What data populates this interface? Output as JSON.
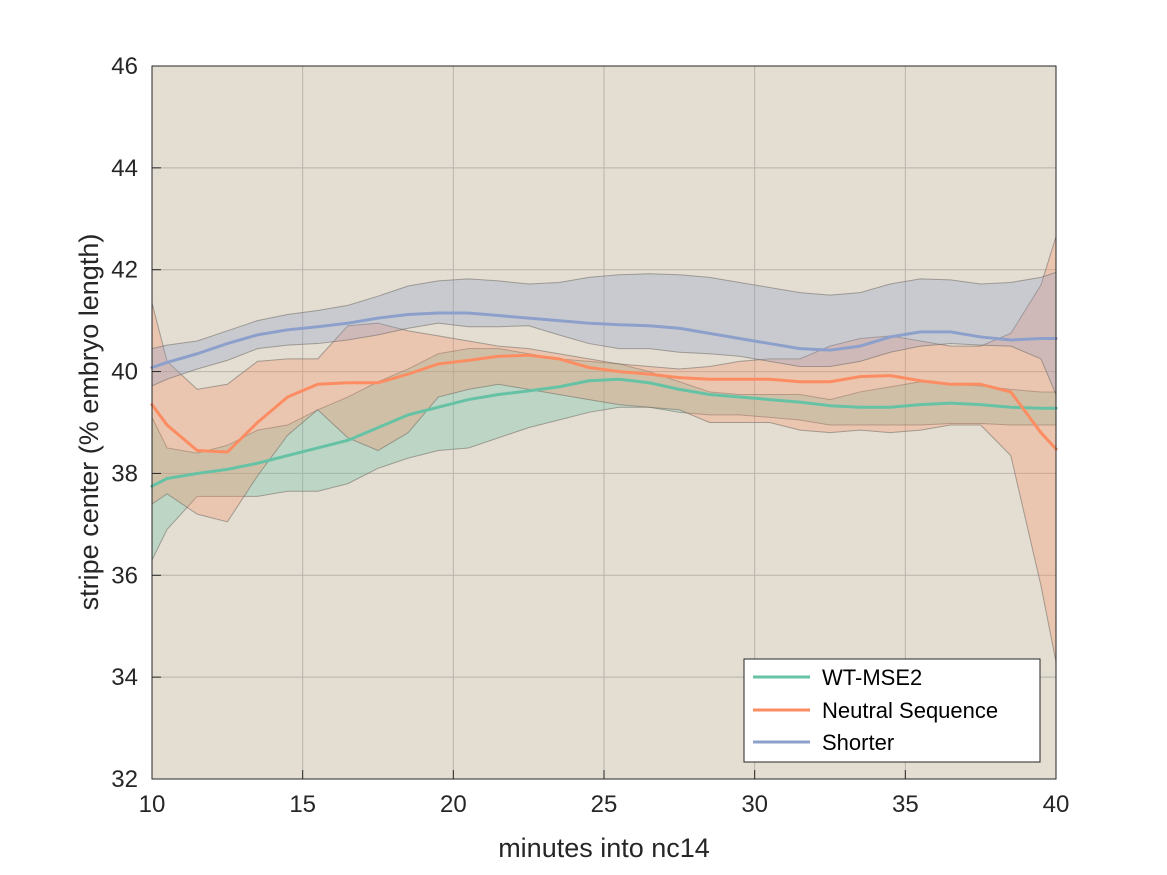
{
  "chart_data": {
    "type": "line",
    "title": "",
    "xlabel": "minutes into nc14",
    "ylabel": "stripe center (% embryo length)",
    "xlim": [
      10,
      40
    ],
    "ylim": [
      32,
      46
    ],
    "xticks": [
      10,
      15,
      20,
      25,
      30,
      35,
      40
    ],
    "yticks": [
      32,
      34,
      36,
      38,
      40,
      42,
      44,
      46
    ],
    "grid": true,
    "legend_position": "bottom-right",
    "background_color": "#e3ddd2",
    "series": [
      {
        "name": "WT-MSE2",
        "color": "#66c2a5",
        "x": [
          10,
          10.5,
          11.5,
          12.5,
          13.5,
          14.5,
          15.5,
          16.5,
          17.5,
          18.5,
          19.5,
          20.5,
          21.5,
          22.5,
          23.5,
          24.5,
          25.5,
          26.5,
          27.5,
          28.5,
          29.5,
          30.5,
          31.5,
          32.5,
          33.5,
          34.5,
          35.5,
          36.5,
          37.5,
          38.5,
          39.5,
          40
        ],
        "values": [
          37.75,
          37.9,
          38.0,
          38.08,
          38.2,
          38.35,
          38.5,
          38.65,
          38.9,
          39.15,
          39.3,
          39.45,
          39.55,
          39.62,
          39.7,
          39.82,
          39.85,
          39.78,
          39.65,
          39.55,
          39.5,
          39.45,
          39.4,
          39.33,
          39.3,
          39.3,
          39.35,
          39.38,
          39.35,
          39.3,
          39.28,
          39.28
        ],
        "upper": [
          39.1,
          38.5,
          38.4,
          38.55,
          38.85,
          38.95,
          39.25,
          39.5,
          39.8,
          40.05,
          40.35,
          40.45,
          40.45,
          40.35,
          40.25,
          40.2,
          40.15,
          40.0,
          39.8,
          39.6,
          39.55,
          39.55,
          39.55,
          39.45,
          39.6,
          39.7,
          39.8,
          39.75,
          39.72,
          39.65,
          39.6,
          39.6
        ],
        "lower": [
          36.3,
          36.9,
          37.55,
          37.55,
          37.55,
          37.65,
          37.65,
          37.8,
          38.1,
          38.3,
          38.45,
          38.5,
          38.7,
          38.9,
          39.05,
          39.2,
          39.3,
          39.3,
          39.2,
          39.15,
          39.15,
          39.1,
          39.05,
          38.95,
          38.95,
          38.95,
          38.95,
          38.98,
          38.98,
          38.95,
          38.95,
          38.95
        ]
      },
      {
        "name": "Neutral Sequence",
        "color": "#fc8d62",
        "x": [
          10,
          10.5,
          11.5,
          12.5,
          13.5,
          14.5,
          15.5,
          16.5,
          17.5,
          18.5,
          19.5,
          20.5,
          21.5,
          22.5,
          23.5,
          24.5,
          25.5,
          26.5,
          27.5,
          28.5,
          29.5,
          30.5,
          31.5,
          32.5,
          33.5,
          34.5,
          35.5,
          36.5,
          37.5,
          38.5,
          39.5,
          40
        ],
        "values": [
          39.35,
          38.95,
          38.45,
          38.42,
          39.0,
          39.5,
          39.75,
          39.78,
          39.78,
          39.95,
          40.15,
          40.22,
          40.3,
          40.32,
          40.25,
          40.08,
          40.0,
          39.95,
          39.88,
          39.85,
          39.85,
          39.85,
          39.8,
          39.8,
          39.9,
          39.92,
          39.82,
          39.75,
          39.75,
          39.6,
          38.8,
          38.48
        ],
        "upper": [
          41.35,
          40.2,
          39.65,
          39.75,
          40.2,
          40.25,
          40.25,
          40.9,
          40.95,
          40.8,
          40.7,
          40.6,
          40.5,
          40.45,
          40.35,
          40.25,
          40.15,
          40.1,
          40.05,
          40.1,
          40.2,
          40.25,
          40.25,
          40.5,
          40.65,
          40.7,
          40.6,
          40.5,
          40.5,
          40.75,
          41.7,
          42.65
        ],
        "lower": [
          37.4,
          37.6,
          37.2,
          37.05,
          37.95,
          38.75,
          39.25,
          38.7,
          38.45,
          38.8,
          39.5,
          39.65,
          39.75,
          39.65,
          39.55,
          39.45,
          39.35,
          39.3,
          39.25,
          39.0,
          39.0,
          39.0,
          38.85,
          38.8,
          38.85,
          38.8,
          38.85,
          38.95,
          38.95,
          38.35,
          35.8,
          34.3
        ]
      },
      {
        "name": "Shorter",
        "color": "#8da0cb",
        "x": [
          10,
          10.5,
          11.5,
          12.5,
          13.5,
          14.5,
          15.5,
          16.5,
          17.5,
          18.5,
          19.5,
          20.5,
          21.5,
          22.5,
          23.5,
          24.5,
          25.5,
          26.5,
          27.5,
          28.5,
          29.5,
          30.5,
          31.5,
          32.5,
          33.5,
          34.5,
          35.5,
          36.5,
          37.5,
          38.5,
          39.5,
          40
        ],
        "values": [
          40.08,
          40.18,
          40.35,
          40.55,
          40.72,
          40.82,
          40.88,
          40.95,
          41.05,
          41.12,
          41.15,
          41.15,
          41.1,
          41.05,
          41.0,
          40.95,
          40.92,
          40.9,
          40.85,
          40.75,
          40.65,
          40.55,
          40.45,
          40.42,
          40.5,
          40.68,
          40.78,
          40.78,
          40.68,
          40.62,
          40.65,
          40.65
        ],
        "upper": [
          40.45,
          40.52,
          40.6,
          40.8,
          41.0,
          41.12,
          41.2,
          41.3,
          41.48,
          41.68,
          41.78,
          41.82,
          41.78,
          41.72,
          41.75,
          41.85,
          41.9,
          41.92,
          41.9,
          41.85,
          41.75,
          41.65,
          41.55,
          41.5,
          41.55,
          41.72,
          41.82,
          41.8,
          41.72,
          41.75,
          41.85,
          41.95
        ],
        "lower": [
          39.72,
          39.85,
          40.05,
          40.22,
          40.45,
          40.52,
          40.55,
          40.62,
          40.72,
          40.85,
          40.95,
          40.88,
          40.88,
          40.9,
          40.72,
          40.55,
          40.45,
          40.45,
          40.38,
          40.35,
          40.3,
          40.2,
          40.1,
          40.1,
          40.2,
          40.38,
          40.5,
          40.55,
          40.52,
          40.5,
          40.25,
          39.55
        ]
      }
    ]
  }
}
